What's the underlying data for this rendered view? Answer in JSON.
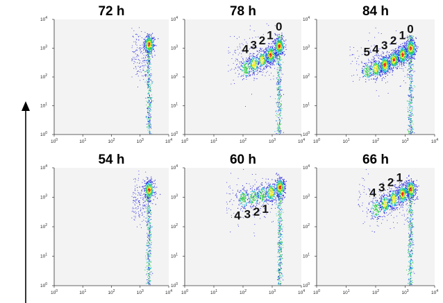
{
  "chart_data": [
    {
      "type": "scatter",
      "title": "72 h",
      "xscale": "log",
      "yscale": "log",
      "xlim": [
        1,
        10000
      ],
      "ylim": [
        1,
        10000
      ],
      "x_ticks": [
        "10^0",
        "10^1",
        "10^2",
        "10^3",
        "10^4"
      ],
      "y_ticks": [
        "10^0",
        "10^1",
        "10^2",
        "10^3",
        "10^4"
      ],
      "populations": [
        {
          "label": "",
          "x": 2000,
          "y": 1400,
          "density": "high"
        }
      ],
      "vertical_streak": {
        "x": 2000,
        "y_from": 1,
        "y_to": 3000
      }
    },
    {
      "type": "scatter",
      "title": "78 h",
      "xscale": "log",
      "yscale": "log",
      "xlim": [
        1,
        10000
      ],
      "ylim": [
        1,
        10000
      ],
      "x_ticks": [
        "10^0",
        "10^1",
        "10^2",
        "10^3",
        "10^4"
      ],
      "y_ticks": [
        "10^0",
        "10^1",
        "10^2",
        "10^3",
        "10^4"
      ],
      "populations": [
        {
          "label": "0",
          "x": 1700,
          "y": 1200,
          "density": "high"
        },
        {
          "label": "1",
          "x": 850,
          "y": 600,
          "density": "high"
        },
        {
          "label": "2",
          "x": 450,
          "y": 400,
          "density": "medium"
        },
        {
          "label": "3",
          "x": 230,
          "y": 280,
          "density": "medium"
        },
        {
          "label": "4",
          "x": 120,
          "y": 200,
          "density": "low"
        }
      ],
      "vertical_streak": {
        "x": 1700,
        "y_from": 1,
        "y_to": 3000
      }
    },
    {
      "type": "scatter",
      "title": "84 h",
      "xscale": "log",
      "yscale": "log",
      "xlim": [
        1,
        10000
      ],
      "ylim": [
        1,
        10000
      ],
      "x_ticks": [
        "10^0",
        "10^1",
        "10^2",
        "10^3",
        "10^4"
      ],
      "y_ticks": [
        "10^0",
        "10^1",
        "10^2",
        "10^3",
        "10^4"
      ],
      "populations": [
        {
          "label": "0",
          "x": 1500,
          "y": 1000,
          "density": "high"
        },
        {
          "label": "1",
          "x": 800,
          "y": 600,
          "density": "high"
        },
        {
          "label": "2",
          "x": 400,
          "y": 400,
          "density": "high"
        },
        {
          "label": "3",
          "x": 200,
          "y": 270,
          "density": "high"
        },
        {
          "label": "4",
          "x": 100,
          "y": 200,
          "density": "medium"
        },
        {
          "label": "5",
          "x": 50,
          "y": 160,
          "density": "low"
        }
      ],
      "vertical_streak": {
        "x": 1500,
        "y_from": 1,
        "y_to": 3000
      }
    },
    {
      "type": "scatter",
      "title": "54 h",
      "xscale": "log",
      "yscale": "log",
      "xlim": [
        1,
        10000
      ],
      "ylim": [
        1,
        10000
      ],
      "x_ticks": [
        "10^0",
        "10^1",
        "10^2",
        "10^3",
        "10^4"
      ],
      "y_ticks": [
        "10^0",
        "10^1",
        "10^2",
        "10^3",
        "10^4"
      ],
      "populations": [
        {
          "label": "",
          "x": 2000,
          "y": 1800,
          "density": "high"
        }
      ],
      "vertical_streak": {
        "x": 2000,
        "y_from": 1,
        "y_to": 3000
      }
    },
    {
      "type": "scatter",
      "title": "60 h",
      "xscale": "log",
      "yscale": "log",
      "xlim": [
        1,
        10000
      ],
      "ylim": [
        1,
        10000
      ],
      "x_ticks": [
        "10^0",
        "10^1",
        "10^2",
        "10^3",
        "10^4"
      ],
      "y_ticks": [
        "10^0",
        "10^1",
        "10^2",
        "10^3",
        "10^4"
      ],
      "populations": [
        {
          "label": "",
          "x": 1800,
          "y": 2200,
          "density": "high"
        },
        {
          "label": "1",
          "x": 900,
          "y": 1500,
          "density": "medium"
        },
        {
          "label": "2",
          "x": 450,
          "y": 1200,
          "density": "low"
        },
        {
          "label": "3",
          "x": 220,
          "y": 1000,
          "density": "low"
        },
        {
          "label": "4",
          "x": 100,
          "y": 900,
          "density": "low"
        }
      ],
      "vertical_streak": {
        "x": 1800,
        "y_from": 1,
        "y_to": 4000
      }
    },
    {
      "type": "scatter",
      "title": "66 h",
      "xscale": "log",
      "yscale": "log",
      "xlim": [
        1,
        10000
      ],
      "ylim": [
        1,
        10000
      ],
      "x_ticks": [
        "10^0",
        "10^1",
        "10^2",
        "10^3",
        "10^4"
      ],
      "y_ticks": [
        "10^0",
        "10^1",
        "10^2",
        "10^3",
        "10^4"
      ],
      "populations": [
        {
          "label": "",
          "x": 1500,
          "y": 1900,
          "density": "high"
        },
        {
          "label": "1",
          "x": 800,
          "y": 1300,
          "density": "high"
        },
        {
          "label": "2",
          "x": 400,
          "y": 900,
          "density": "medium"
        },
        {
          "label": "3",
          "x": 200,
          "y": 600,
          "density": "medium"
        },
        {
          "label": "4",
          "x": 100,
          "y": 400,
          "density": "low"
        }
      ],
      "vertical_streak": {
        "x": 1500,
        "y_from": 1,
        "y_to": 3000
      }
    }
  ],
  "colors": {
    "background": "#ffffff",
    "plot_background": "#f3f3f3",
    "axis": "#333333",
    "density_low": "#2222dd",
    "density_mid": "#11bbdd",
    "density_mid2": "#33cc44",
    "density_high": "#eeee22",
    "density_peak": "#ee2211",
    "arrow": "#000000"
  }
}
